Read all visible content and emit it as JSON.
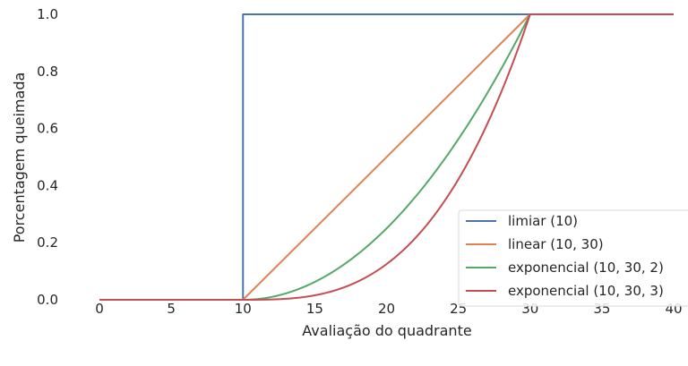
{
  "chart_data": {
    "type": "line",
    "xlabel": "Avaliação do quadrante",
    "ylabel": "Porcentagem queimada",
    "xlim": [
      0,
      40
    ],
    "ylim": [
      0,
      1.0
    ],
    "xticks": [
      0,
      5,
      10,
      15,
      20,
      25,
      30,
      35,
      40
    ],
    "yticks": [
      0.0,
      0.2,
      0.4,
      0.6,
      0.8,
      1.0
    ],
    "xtick_labels": [
      "0",
      "5",
      "10",
      "15",
      "20",
      "25",
      "30",
      "35",
      "40"
    ],
    "ytick_labels": [
      "0.0",
      "0.2",
      "0.4",
      "0.6",
      "0.8",
      "1.0"
    ],
    "grid": false,
    "legend_position": "lower-right",
    "series": [
      {
        "name": "limiar (10)",
        "color": "#4c72b0",
        "x": [
          0,
          10,
          10,
          40
        ],
        "y": [
          0,
          0,
          1,
          1
        ]
      },
      {
        "name": "linear (10, 30)",
        "color": "#dd8452",
        "x": [
          0,
          10,
          30,
          40
        ],
        "y": [
          0,
          0,
          1,
          1
        ]
      },
      {
        "name": "exponencial (10, 30, 2)",
        "color": "#55a868",
        "x": [
          0,
          10,
          12,
          14,
          16,
          18,
          20,
          22,
          24,
          26,
          28,
          30,
          40
        ],
        "y": [
          0,
          0,
          0.01,
          0.04,
          0.09,
          0.16,
          0.25,
          0.36,
          0.49,
          0.64,
          0.81,
          1.0,
          1.0
        ]
      },
      {
        "name": "exponencial (10, 30, 3)",
        "color": "#c44e52",
        "x": [
          0,
          10,
          12,
          14,
          16,
          18,
          20,
          22,
          24,
          26,
          28,
          30,
          40
        ],
        "y": [
          0,
          0,
          0.001,
          0.008,
          0.027,
          0.064,
          0.125,
          0.216,
          0.343,
          0.512,
          0.729,
          1.0,
          1.0
        ]
      }
    ]
  }
}
